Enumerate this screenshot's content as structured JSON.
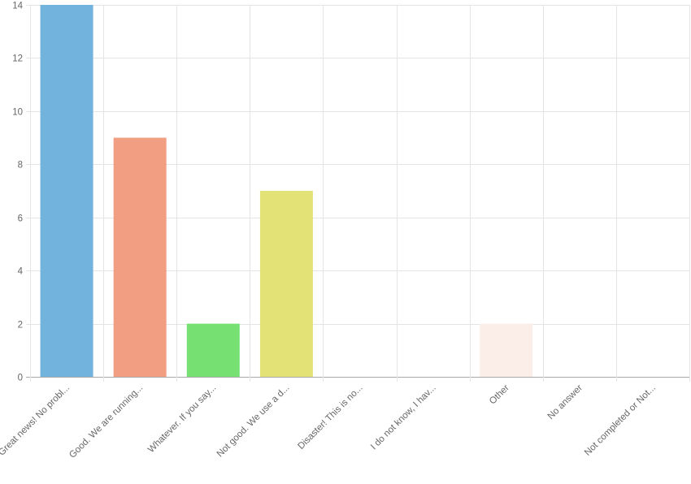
{
  "chart_data": {
    "type": "bar",
    "categories": [
      "Great news! No probl...",
      "Good. We are running...",
      "Whatever. If you say...",
      "Not good. We use a d...",
      "Disaster! This is no...",
      "I do not know, I hav...",
      "Other",
      "No answer",
      "Not completed or Not..."
    ],
    "values": [
      14,
      9,
      2,
      7,
      0,
      0,
      2,
      0,
      0
    ],
    "colors": [
      "#72b3de",
      "#f19e83",
      "#77e072",
      "#e3e276",
      "#d9d9d9",
      "#d9d9d9",
      "#fbeee9",
      "#d9d9d9",
      "#d9d9d9"
    ],
    "ylim": [
      0,
      14
    ],
    "yticks": [
      0,
      2,
      4,
      6,
      8,
      10,
      12,
      14
    ],
    "grid": true,
    "legend": "none"
  }
}
